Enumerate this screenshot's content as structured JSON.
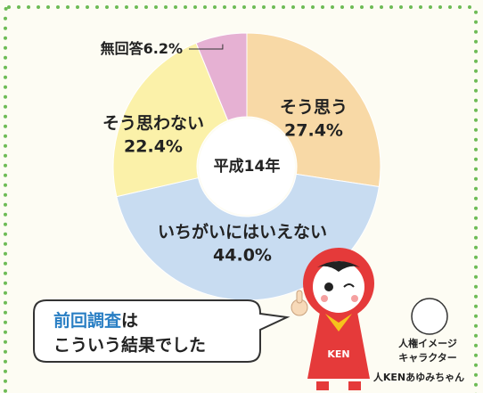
{
  "chart_data": {
    "type": "donut",
    "center_label": "平成14年",
    "categories": [
      "そう思う",
      "いちがいにはいえない",
      "そう思わない",
      "無回答"
    ],
    "values": [
      27.4,
      44.0,
      22.4,
      6.2
    ],
    "value_labels": [
      "27.4%",
      "44.0%",
      "22.4%",
      "6.2%"
    ],
    "colors": [
      "#f8d9a6",
      "#c8dcf1",
      "#fbf1a9",
      "#e6b1d3"
    ]
  },
  "callout": {
    "highlight": "前回調査",
    "line1_rest": "は",
    "line2": "こういう結果でした"
  },
  "character": {
    "shirt": "KEN",
    "caption": [
      "人権イメージ",
      "キャラクター",
      "人KENあゆみちゃん"
    ]
  }
}
